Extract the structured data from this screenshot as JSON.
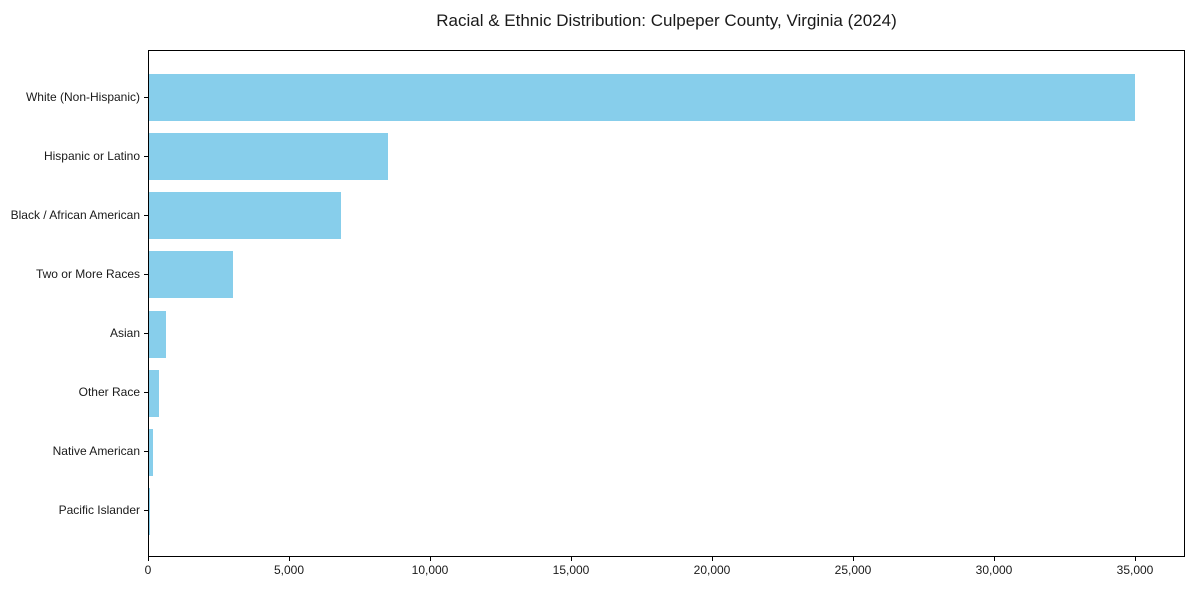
{
  "title": "Racial & Ethnic Distribution: Culpeper County, Virginia (2024)",
  "colors": {
    "bar": "#87CEEB",
    "axis": "#000000",
    "text": "#1a1a1a",
    "background": "#ffffff"
  },
  "chart_data": {
    "type": "bar",
    "orientation": "horizontal",
    "title": "Racial & Ethnic Distribution: Culpeper County, Virginia (2024)",
    "categories": [
      "White (Non-Hispanic)",
      "Hispanic or Latino",
      "Black / African American",
      "Two or More Races",
      "Asian",
      "Other Race",
      "Native American",
      "Pacific Islander"
    ],
    "values": [
      35000,
      8500,
      6800,
      3000,
      620,
      350,
      150,
      30
    ],
    "xlabel": "",
    "ylabel": "",
    "xlim": [
      0,
      36750
    ],
    "xticks": [
      0,
      5000,
      10000,
      15000,
      20000,
      25000,
      30000,
      35000
    ],
    "xtick_labels": [
      "0",
      "5,000",
      "10,000",
      "15,000",
      "20,000",
      "25,000",
      "30,000",
      "35,000"
    ],
    "bar_color": "#87CEEB",
    "grid": false,
    "legend": null
  }
}
